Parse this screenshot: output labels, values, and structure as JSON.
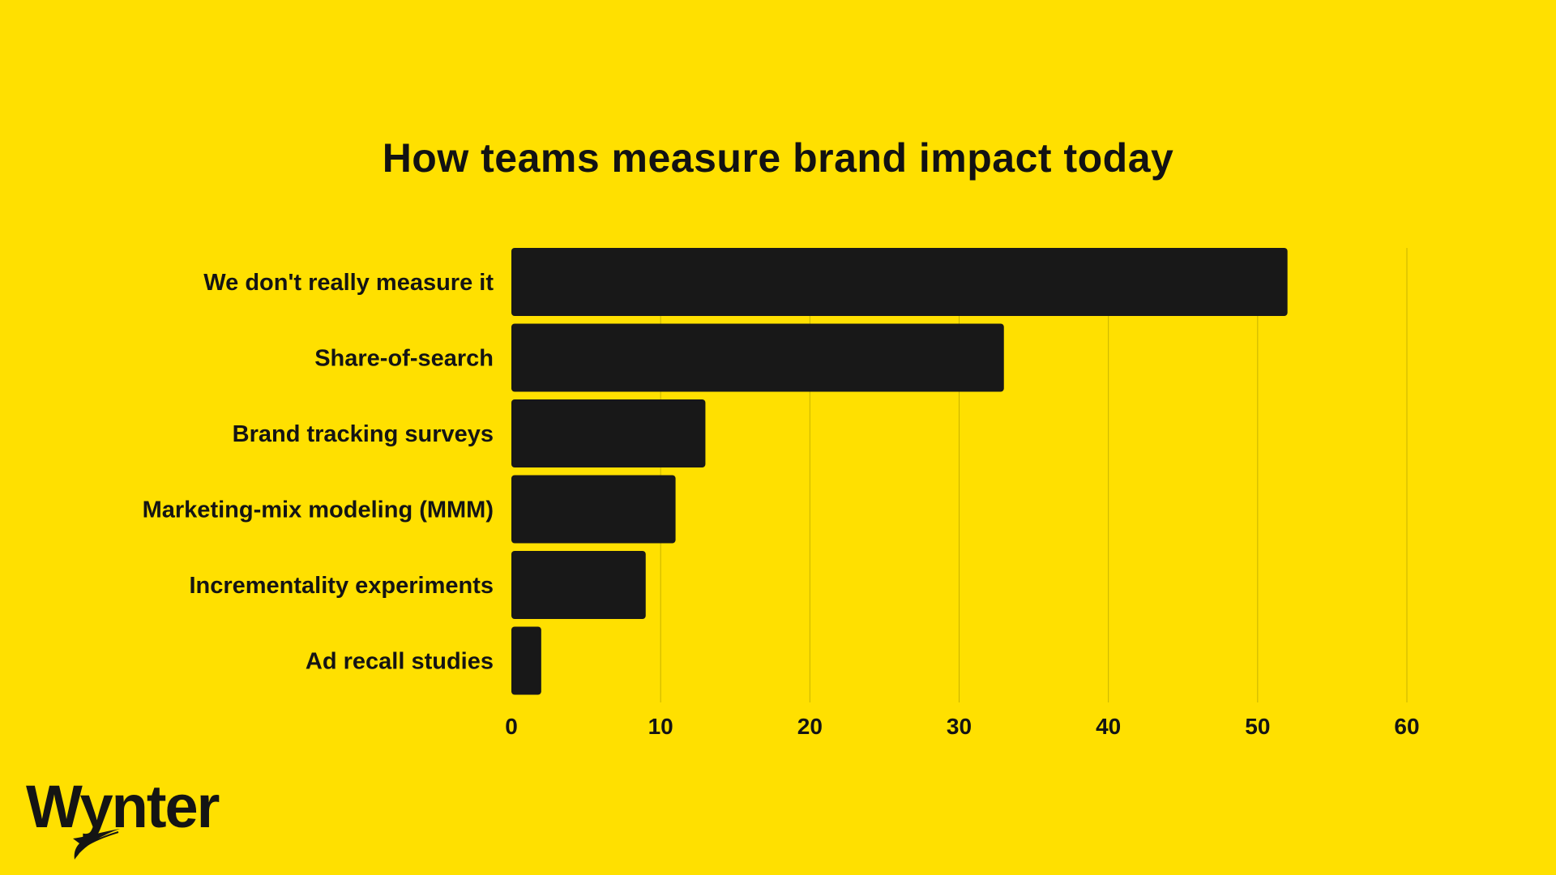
{
  "brand": {
    "logo_text": "Wynter"
  },
  "colors": {
    "background": "#FFE000",
    "bar": "#181818",
    "text": "#121212",
    "grid": "#C8B400"
  },
  "chart_data": {
    "type": "bar",
    "orientation": "horizontal",
    "title": "How teams measure brand impact today",
    "categories": [
      "We don't really measure it",
      "Share-of-search",
      "Brand tracking surveys",
      "Marketing-mix modeling (MMM)",
      "Incrementality experiments",
      "Ad recall studies"
    ],
    "values": [
      52,
      33,
      13,
      11,
      9,
      2
    ],
    "xlim": [
      0,
      60
    ],
    "xticks": [
      "0",
      "10",
      "20",
      "30",
      "40",
      "50",
      "60"
    ],
    "xlabel": "",
    "ylabel": "",
    "grid": "vertical"
  }
}
